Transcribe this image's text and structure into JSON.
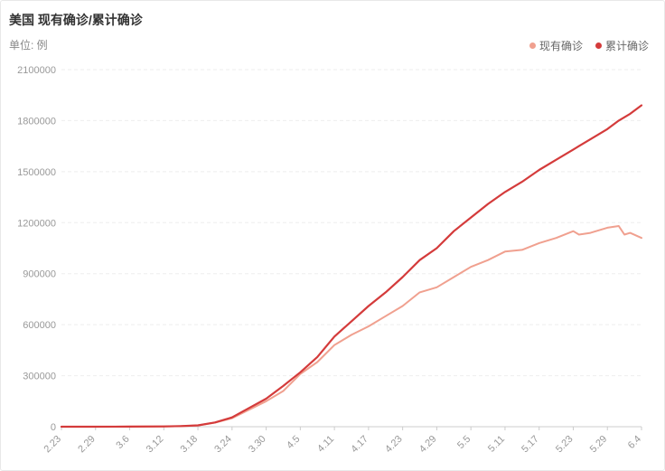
{
  "header": {
    "title": "美国 现有确诊/累计确诊",
    "unit": "单位: 例"
  },
  "colors": {
    "series_current": "#f0a08f",
    "series_cumulative": "#d43b3b",
    "grid": "#eeeeee",
    "axis_text": "#999999"
  },
  "chart_data": {
    "type": "line",
    "title": "美国 现有确诊/累计确诊",
    "ylabel": "单位: 例",
    "xlabel": "",
    "ylim": [
      0,
      2100000
    ],
    "yticks": [
      "0",
      "300000",
      "600000",
      "900000",
      "1200000",
      "1500000",
      "1800000",
      "2100000"
    ],
    "xticks": [
      "2.23",
      "2.29",
      "3.6",
      "3.12",
      "3.18",
      "3.24",
      "3.30",
      "4.5",
      "4.11",
      "4.17",
      "4.23",
      "4.29",
      "5.5",
      "5.11",
      "5.17",
      "5.23",
      "5.29",
      "6.4"
    ],
    "grid": true,
    "legend_position": "top-right",
    "x": [
      "2.23",
      "2.29",
      "3.6",
      "3.12",
      "3.15",
      "3.18",
      "3.21",
      "3.24",
      "3.27",
      "3.30",
      "4.2",
      "4.5",
      "4.8",
      "4.11",
      "4.14",
      "4.17",
      "4.20",
      "4.23",
      "4.26",
      "4.29",
      "5.2",
      "5.5",
      "5.8",
      "5.11",
      "5.14",
      "5.17",
      "5.20",
      "5.23",
      "5.24",
      "5.26",
      "5.29",
      "5.31",
      "6.1",
      "6.2",
      "6.4"
    ],
    "series": [
      {
        "name": "现有确诊",
        "values": [
          15,
          60,
          300,
          1500,
          3300,
          7500,
          24000,
          50000,
          100000,
          150000,
          210000,
          310000,
          380000,
          480000,
          540000,
          590000,
          650000,
          710000,
          790000,
          820000,
          880000,
          940000,
          980000,
          1030000,
          1040000,
          1080000,
          1110000,
          1150000,
          1130000,
          1140000,
          1170000,
          1180000,
          1130000,
          1140000,
          1110000
        ]
      },
      {
        "name": "累计确诊",
        "values": [
          15,
          70,
          330,
          1600,
          3500,
          8000,
          25000,
          55000,
          110000,
          165000,
          240000,
          320000,
          410000,
          530000,
          620000,
          710000,
          790000,
          880000,
          980000,
          1050000,
          1150000,
          1230000,
          1310000,
          1380000,
          1440000,
          1510000,
          1570000,
          1630000,
          1650000,
          1690000,
          1750000,
          1800000,
          1820000,
          1840000,
          1890000
        ]
      }
    ]
  }
}
